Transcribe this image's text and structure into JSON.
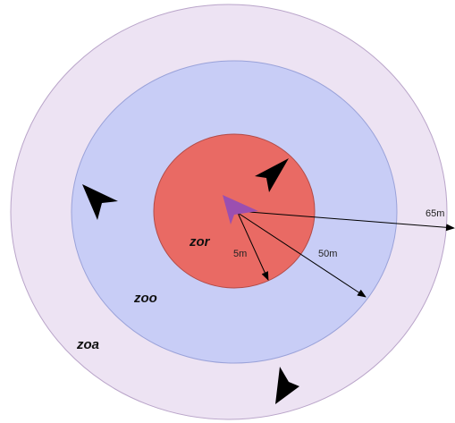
{
  "diagram": {
    "zones": {
      "zoa": {
        "label": "zoa",
        "color": "#EDE3F3",
        "stroke": "#B9A4C9"
      },
      "zoo": {
        "label": "zoo",
        "color": "#C8CDF6",
        "stroke": "#9AA2D9"
      },
      "zor": {
        "label": "zor",
        "color": "#E96A64",
        "stroke": "#B24B48"
      }
    },
    "distances": {
      "outer": "65m",
      "middle": "50m",
      "inner": "5m"
    },
    "focal_agent_color": "#9B4FB0",
    "agent_color": "#000000",
    "line_color": "#000000",
    "icons": {
      "focal_agent": "arrowhead-icon",
      "neighbor_agent": "arrowhead-icon"
    }
  }
}
